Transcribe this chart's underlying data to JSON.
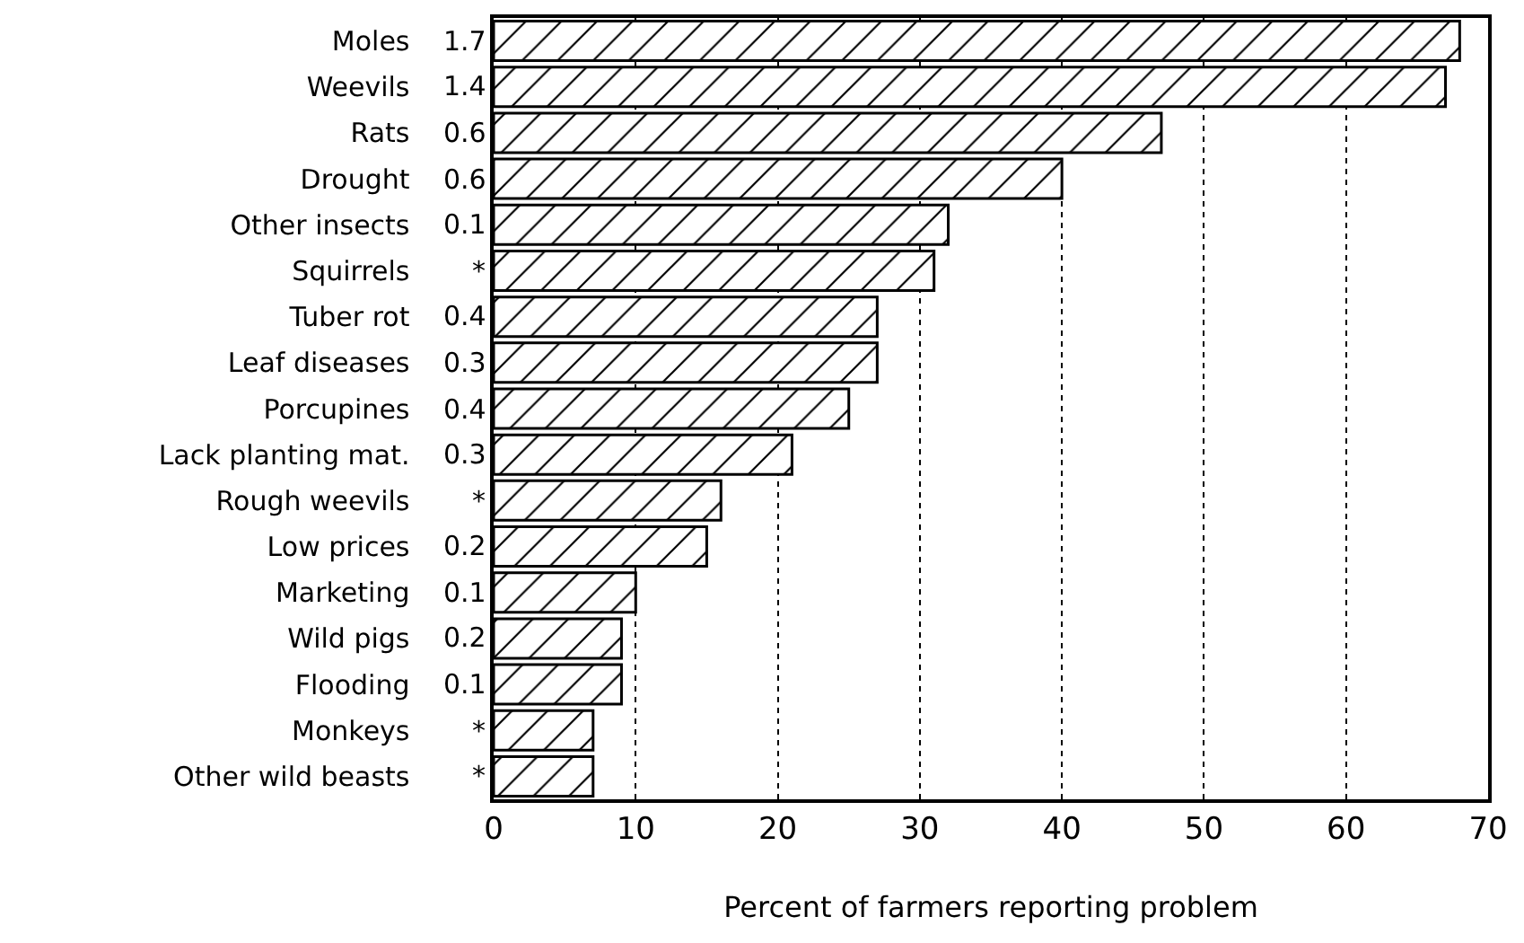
{
  "chart_data": {
    "type": "bar",
    "orientation": "horizontal",
    "categories": [
      "Moles",
      "Weevils",
      "Rats",
      "Drought",
      "Other insects",
      "Squirrels",
      "Tuber rot",
      "Leaf diseases",
      "Porcupines",
      "Lack planting mat.",
      "Rough weevils",
      "Low prices",
      "Marketing",
      "Wild pigs",
      "Flooding",
      "Monkeys",
      "Other wild beasts"
    ],
    "values": [
      68,
      67,
      47,
      40,
      32,
      31,
      27,
      27,
      25,
      21,
      16,
      15,
      10,
      9,
      9,
      7,
      7
    ],
    "color": "#000000",
    "xlabel": "Percent of farmers reporting problem",
    "xlim": [
      0,
      70
    ],
    "xticks": [
      0,
      10,
      20,
      30,
      40,
      50,
      60,
      70
    ],
    "grid": "x",
    "legend": false,
    "annotations": [
      "1.7",
      "1.4",
      "0.6",
      "0.6",
      "0.1",
      "*",
      "0.4",
      "0.3",
      "0.4",
      "0.3",
      "*",
      "0.2",
      "0.1",
      "0.2",
      "0.1",
      "*",
      "*"
    ]
  }
}
